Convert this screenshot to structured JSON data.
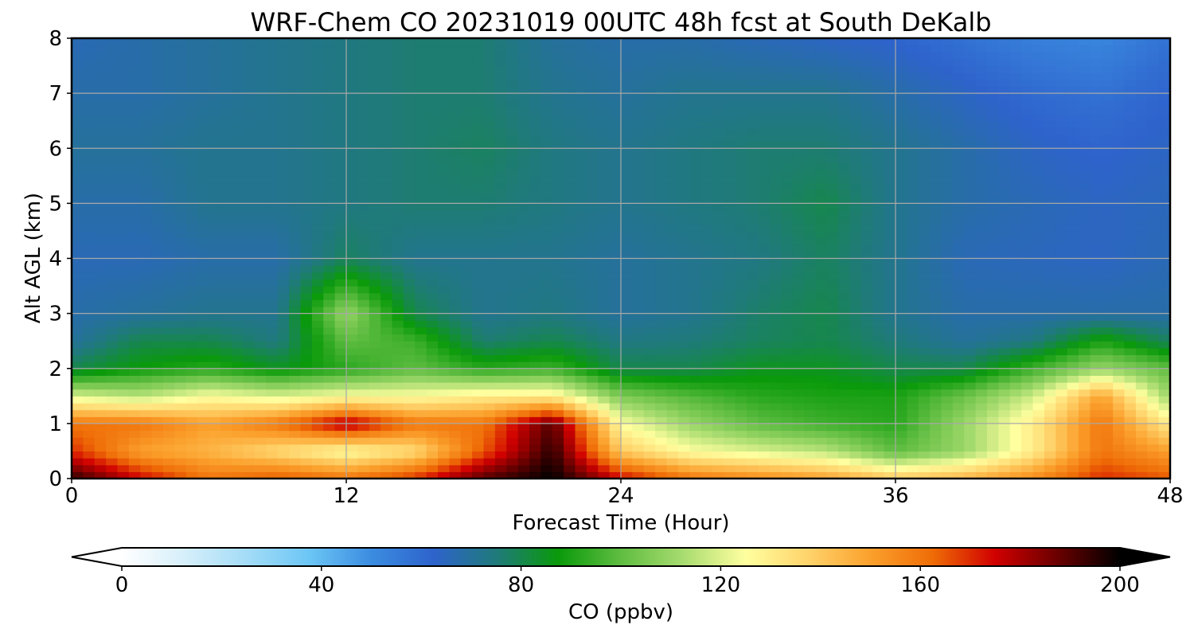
{
  "chart_data": {
    "type": "heatmap",
    "title": "WRF-Chem CO  20231019 00UTC 48h fcst at South DeKalb",
    "xlabel": "Forecast Time (Hour)",
    "ylabel": "Alt AGL (km)",
    "xlim": [
      0,
      48
    ],
    "ylim": [
      0,
      8
    ],
    "xticks": [
      0,
      12,
      24,
      36,
      48
    ],
    "yticks": [
      0,
      1,
      2,
      3,
      4,
      5,
      6,
      7,
      8
    ],
    "grid": true,
    "x": [
      0,
      3,
      6,
      9,
      12,
      15,
      18,
      21,
      24,
      27,
      30,
      33,
      36,
      39,
      42,
      45,
      48
    ],
    "y": [
      0,
      0.5,
      1,
      1.5,
      2,
      2.5,
      3,
      4,
      5,
      6,
      7,
      8
    ],
    "z": [
      [
        195,
        175,
        160,
        165,
        160,
        170,
        190,
        200,
        175,
        160,
        155,
        150,
        140,
        145,
        155,
        170,
        165
      ],
      [
        170,
        150,
        145,
        135,
        125,
        135,
        165,
        195,
        140,
        125,
        120,
        115,
        100,
        110,
        130,
        160,
        150
      ],
      [
        160,
        160,
        150,
        160,
        180,
        160,
        160,
        190,
        125,
        110,
        100,
        95,
        92,
        110,
        130,
        160,
        130
      ],
      [
        120,
        115,
        125,
        120,
        125,
        125,
        130,
        130,
        105,
        98,
        92,
        90,
        90,
        102,
        118,
        150,
        110
      ],
      [
        80,
        88,
        92,
        85,
        92,
        100,
        92,
        95,
        80,
        80,
        85,
        85,
        80,
        80,
        95,
        110,
        100
      ],
      [
        70,
        80,
        80,
        74,
        100,
        95,
        76,
        80,
        74,
        75,
        78,
        80,
        75,
        70,
        74,
        90,
        78
      ],
      [
        68,
        70,
        72,
        72,
        110,
        80,
        72,
        74,
        70,
        72,
        77,
        80,
        72,
        68,
        68,
        68,
        68
      ],
      [
        66,
        66,
        68,
        68,
        78,
        72,
        72,
        72,
        70,
        72,
        74,
        78,
        72,
        66,
        65,
        64,
        66
      ],
      [
        68,
        68,
        72,
        72,
        74,
        76,
        76,
        74,
        72,
        74,
        76,
        80,
        72,
        68,
        66,
        64,
        65
      ],
      [
        70,
        70,
        72,
        72,
        74,
        76,
        78,
        74,
        72,
        74,
        76,
        76,
        72,
        68,
        64,
        62,
        64
      ],
      [
        68,
        68,
        70,
        72,
        74,
        76,
        76,
        72,
        70,
        72,
        72,
        72,
        68,
        64,
        60,
        58,
        62
      ],
      [
        66,
        68,
        70,
        72,
        74,
        76,
        76,
        70,
        68,
        68,
        66,
        64,
        62,
        58,
        54,
        52,
        58
      ]
    ],
    "colorbar": {
      "label": "CO  (ppbv)",
      "min": 0,
      "max": 200,
      "ticks": [
        0,
        40,
        80,
        120,
        160,
        200
      ],
      "extend": "both",
      "colors": [
        "#ffffff",
        "#d6effa",
        "#a4dcf7",
        "#6cc6f5",
        "#3b8ce0",
        "#2e63cc",
        "#1f7a7a",
        "#0a9a0a",
        "#60bd42",
        "#a8dc70",
        "#ffff9f",
        "#ffd36b",
        "#fba02c",
        "#ef6c06",
        "#d00000",
        "#6a0000",
        "#000000"
      ]
    }
  }
}
